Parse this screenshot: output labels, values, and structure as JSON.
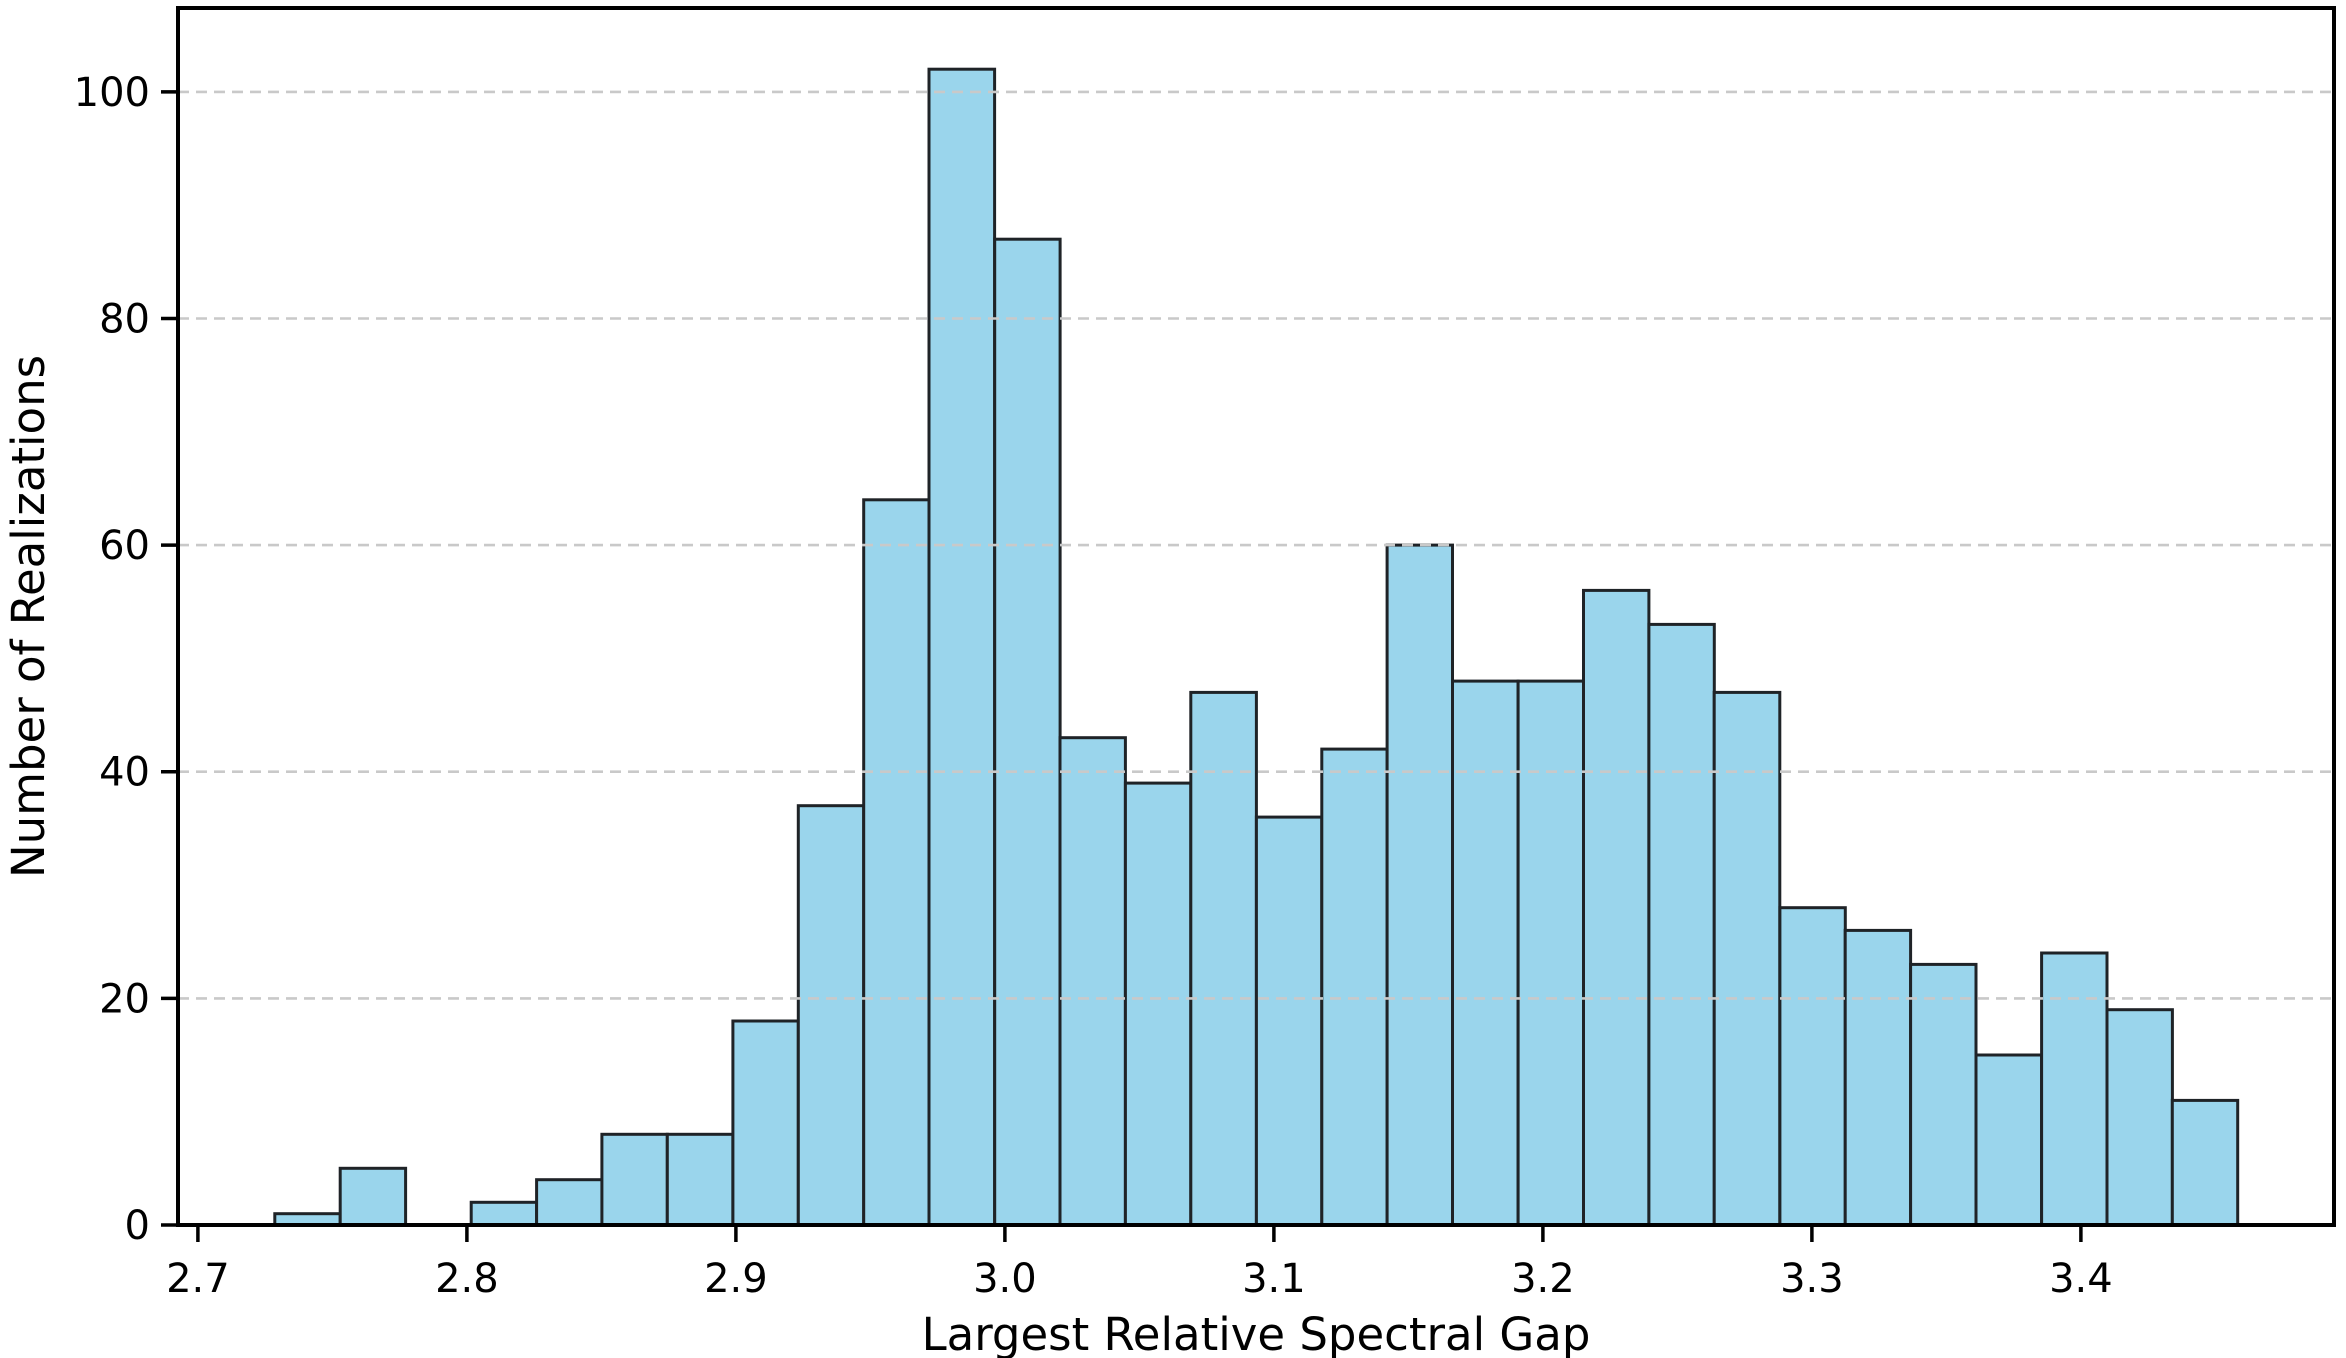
{
  "chart_data": {
    "type": "bar",
    "subtype": "histogram",
    "title": "",
    "xlabel": "Largest Relative Spectral Gap",
    "ylabel": "Number of Realizations",
    "bin_edges": [
      2.7286,
      2.7529,
      2.7772,
      2.8016,
      2.8259,
      2.8502,
      2.8745,
      2.8989,
      2.9232,
      2.9475,
      2.9718,
      2.9962,
      3.0205,
      3.0448,
      3.0691,
      3.0935,
      3.1178,
      3.1421,
      3.1664,
      3.1908,
      3.2151,
      3.2394,
      3.2637,
      3.2881,
      3.3124,
      3.3367,
      3.361,
      3.3854,
      3.4097,
      3.434,
      3.4583
    ],
    "counts": [
      1,
      5,
      0,
      2,
      4,
      8,
      8,
      18,
      37,
      64,
      102,
      87,
      43,
      39,
      47,
      36,
      42,
      60,
      48,
      48,
      56,
      53,
      47,
      28,
      26,
      23,
      15,
      24,
      19,
      11
    ],
    "xticks": [
      2.7,
      2.8,
      2.9,
      3.0,
      3.1,
      3.2,
      3.3,
      3.4
    ],
    "xtick_labels": [
      "2.7",
      "2.8",
      "2.9",
      "3.0",
      "3.1",
      "3.2",
      "3.3",
      "3.4"
    ],
    "yticks": [
      0,
      20,
      40,
      60,
      80,
      100
    ],
    "ytick_labels": [
      "0",
      "20",
      "40",
      "60",
      "80",
      "100"
    ],
    "xlim": [
      2.6926,
      3.4941
    ],
    "ylim": [
      0,
      107.4
    ],
    "grid": {
      "axis": "y",
      "style": "dashed",
      "above_bars": true
    },
    "legend": "none",
    "colors": {
      "bar_fill": "#9ad5ec",
      "bar_edge": "#1f2327",
      "grid": "#c9c9c9",
      "spine": "#000000",
      "text": "#000000",
      "background": "#ffffff"
    }
  }
}
